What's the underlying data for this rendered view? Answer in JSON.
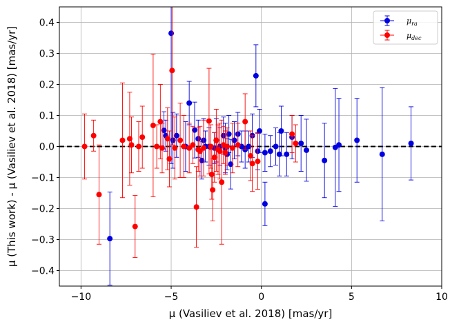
{
  "chart_data": {
    "type": "scatter",
    "xlabel": "μ (Vasiliev et al. 2018) [mas/yr]",
    "ylabel": "μ (This work) - μ (Vasiliev et al. 2018) [mas/yr]",
    "xlim": [
      -11.2,
      10
    ],
    "ylim": [
      -0.45,
      0.45
    ],
    "xticks": [
      -10,
      -5,
      0,
      5,
      10
    ],
    "yticks": [
      -0.4,
      -0.3,
      -0.2,
      -0.1,
      0.0,
      0.1,
      0.2,
      0.3,
      0.4
    ],
    "xtick_labels": [
      "−10",
      "−5",
      "0",
      "5",
      "10"
    ],
    "ytick_labels": [
      "−0.4",
      "−0.3",
      "−0.2",
      "−0.1",
      "0.0",
      "0.1",
      "0.2",
      "0.3",
      "0.4"
    ],
    "grid": true,
    "legend_position": "top-right",
    "reference_line": {
      "y": 0,
      "style": "dashed",
      "color": "#000000"
    },
    "series": [
      {
        "name": "μ_ra",
        "label_main": "μ",
        "label_sub": "ra",
        "color": "#0000e0",
        "points": [
          {
            "x": -8.4,
            "y": -0.297,
            "err": 0.15
          },
          {
            "x": -5.0,
            "y": 0.365,
            "err": 0.42
          },
          {
            "x": -5.4,
            "y": 0.052,
            "err": 0.06
          },
          {
            "x": -5.3,
            "y": 0.035,
            "err": 0.05
          },
          {
            "x": -4.7,
            "y": 0.035,
            "err": 0.07
          },
          {
            "x": -4.9,
            "y": 0.02,
            "err": 0.09
          },
          {
            "x": -4.2,
            "y": 0.0,
            "err": 0.08
          },
          {
            "x": -4.0,
            "y": 0.14,
            "err": 0.07
          },
          {
            "x": -3.7,
            "y": 0.053,
            "err": 0.09
          },
          {
            "x": -3.5,
            "y": 0.025,
            "err": 0.06
          },
          {
            "x": -3.3,
            "y": -0.045,
            "err": 0.06
          },
          {
            "x": -3.2,
            "y": 0.02,
            "err": 0.07
          },
          {
            "x": -3.1,
            "y": 0.0,
            "err": 0.05
          },
          {
            "x": -2.9,
            "y": 0.0,
            "err": 0.06
          },
          {
            "x": -2.6,
            "y": -0.005,
            "err": 0.05
          },
          {
            "x": -2.5,
            "y": 0.02,
            "err": 0.07
          },
          {
            "x": -2.3,
            "y": 0.0,
            "err": 0.06
          },
          {
            "x": -2.1,
            "y": 0.035,
            "err": 0.06
          },
          {
            "x": -2.0,
            "y": -0.005,
            "err": 0.08
          },
          {
            "x": -1.9,
            "y": -0.025,
            "err": 0.05
          },
          {
            "x": -1.8,
            "y": 0.04,
            "err": 0.06
          },
          {
            "x": -1.7,
            "y": -0.057,
            "err": 0.08
          },
          {
            "x": -1.5,
            "y": 0.02,
            "err": 0.06
          },
          {
            "x": -1.3,
            "y": 0.04,
            "err": 0.07
          },
          {
            "x": -1.1,
            "y": 0.0,
            "err": 0.05
          },
          {
            "x": -0.9,
            "y": -0.01,
            "err": 0.06
          },
          {
            "x": -0.7,
            "y": 0.0,
            "err": 0.05
          },
          {
            "x": -0.5,
            "y": 0.035,
            "err": 0.07
          },
          {
            "x": -0.3,
            "y": 0.228,
            "err": 0.1
          },
          {
            "x": -0.2,
            "y": -0.015,
            "err": 0.06
          },
          {
            "x": -0.1,
            "y": 0.05,
            "err": 0.07
          },
          {
            "x": 0.2,
            "y": -0.185,
            "err": 0.07
          },
          {
            "x": 0.2,
            "y": -0.02,
            "err": 0.06
          },
          {
            "x": 0.5,
            "y": -0.015,
            "err": 0.05
          },
          {
            "x": 0.8,
            "y": 0.0,
            "err": 0.06
          },
          {
            "x": 1.0,
            "y": -0.025,
            "err": 0.07
          },
          {
            "x": 1.1,
            "y": 0.05,
            "err": 0.08
          },
          {
            "x": 1.4,
            "y": -0.025,
            "err": 0.07
          },
          {
            "x": 1.7,
            "y": 0.03,
            "err": 0.07
          },
          {
            "x": 2.2,
            "y": 0.01,
            "err": 0.09
          },
          {
            "x": 2.5,
            "y": -0.012,
            "err": 0.1
          },
          {
            "x": 3.5,
            "y": -0.045,
            "err": 0.12
          },
          {
            "x": 4.1,
            "y": -0.003,
            "err": 0.19
          },
          {
            "x": 4.3,
            "y": 0.005,
            "err": 0.15
          },
          {
            "x": 5.3,
            "y": 0.02,
            "err": 0.135
          },
          {
            "x": 6.7,
            "y": -0.025,
            "err": 0.215
          },
          {
            "x": 8.3,
            "y": 0.01,
            "err": 0.118
          }
        ]
      },
      {
        "name": "μ_dec",
        "label_main": "μ",
        "label_sub": "dec",
        "color": "#ff0000",
        "points": [
          {
            "x": -9.8,
            "y": 0.0,
            "err": 0.105
          },
          {
            "x": -9.3,
            "y": 0.035,
            "err": 0.05
          },
          {
            "x": -9.0,
            "y": -0.155,
            "err": 0.16
          },
          {
            "x": -7.7,
            "y": 0.02,
            "err": 0.185
          },
          {
            "x": -7.3,
            "y": 0.025,
            "err": 0.15
          },
          {
            "x": -7.2,
            "y": 0.005,
            "err": 0.09
          },
          {
            "x": -7.0,
            "y": -0.258,
            "err": 0.1
          },
          {
            "x": -6.8,
            "y": 0.0,
            "err": 0.08
          },
          {
            "x": -6.6,
            "y": 0.03,
            "err": 0.1
          },
          {
            "x": -6.0,
            "y": 0.068,
            "err": 0.23
          },
          {
            "x": -5.8,
            "y": 0.0,
            "err": 0.07
          },
          {
            "x": -5.6,
            "y": 0.08,
            "err": 0.12
          },
          {
            "x": -5.5,
            "y": -0.005,
            "err": 0.08
          },
          {
            "x": -5.2,
            "y": 0.025,
            "err": 0.1
          },
          {
            "x": -5.1,
            "y": -0.04,
            "err": 0.09
          },
          {
            "x": -4.95,
            "y": 0.245,
            "err": 0.24
          },
          {
            "x": -4.8,
            "y": -0.005,
            "err": 0.1
          },
          {
            "x": -4.5,
            "y": 0.02,
            "err": 0.12
          },
          {
            "x": -4.3,
            "y": 0.0,
            "err": 0.1
          },
          {
            "x": -4.0,
            "y": -0.005,
            "err": 0.08
          },
          {
            "x": -3.8,
            "y": 0.005,
            "err": 0.06
          },
          {
            "x": -3.6,
            "y": -0.195,
            "err": 0.13
          },
          {
            "x": -3.5,
            "y": -0.01,
            "err": 0.07
          },
          {
            "x": -3.4,
            "y": -0.015,
            "err": 0.08
          },
          {
            "x": -3.2,
            "y": -0.005,
            "err": 0.09
          },
          {
            "x": -2.9,
            "y": 0.082,
            "err": 0.17
          },
          {
            "x": -2.8,
            "y": 0.0,
            "err": 0.07
          },
          {
            "x": -2.75,
            "y": -0.09,
            "err": 0.08
          },
          {
            "x": -2.7,
            "y": -0.14,
            "err": 0.1
          },
          {
            "x": -2.6,
            "y": -0.035,
            "err": 0.08
          },
          {
            "x": -2.5,
            "y": 0.02,
            "err": 0.1
          },
          {
            "x": -2.4,
            "y": -0.01,
            "err": 0.08
          },
          {
            "x": -2.3,
            "y": -0.015,
            "err": 0.09
          },
          {
            "x": -2.2,
            "y": -0.115,
            "err": 0.2
          },
          {
            "x": -2.1,
            "y": 0.005,
            "err": 0.06
          },
          {
            "x": -2.0,
            "y": -0.02,
            "err": 0.07
          },
          {
            "x": -1.9,
            "y": 0.0,
            "err": 0.06
          },
          {
            "x": -1.6,
            "y": -0.005,
            "err": 0.08
          },
          {
            "x": -1.3,
            "y": 0.005,
            "err": 0.07
          },
          {
            "x": -0.9,
            "y": 0.08,
            "err": 0.09
          },
          {
            "x": -0.6,
            "y": -0.03,
            "err": 0.08
          },
          {
            "x": -0.5,
            "y": -0.055,
            "err": 0.09
          },
          {
            "x": -0.2,
            "y": -0.048,
            "err": 0.09
          },
          {
            "x": 1.7,
            "y": 0.04,
            "err": 0.06
          },
          {
            "x": 1.9,
            "y": 0.01,
            "err": 0.06
          }
        ]
      }
    ]
  }
}
